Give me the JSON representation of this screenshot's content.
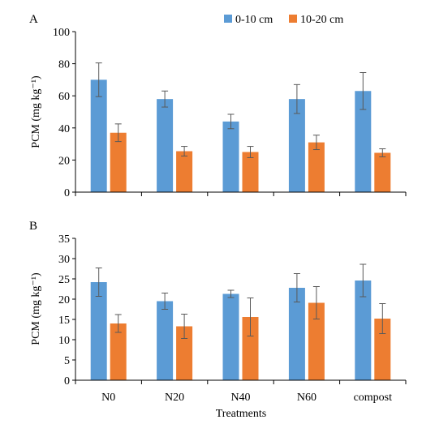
{
  "colors": {
    "series_a": "#5B9BD5",
    "series_b": "#ED7D31",
    "axis": "#000000",
    "error_bar": "#595959"
  },
  "legend": {
    "items": [
      "0-10 cm",
      "10-20 cm"
    ]
  },
  "xlabel": "Treatments",
  "chart_data": [
    {
      "type": "bar",
      "panel_label": "A",
      "categories": [
        "N0",
        "N20",
        "N40",
        "N60",
        "compost"
      ],
      "ylabel": "PCM (mg kg⁻¹)",
      "ylim": [
        0,
        100
      ],
      "yticks": [
        0,
        20,
        40,
        60,
        80,
        100
      ],
      "grid": false,
      "show_category_labels": false,
      "series": [
        {
          "name": "0-10 cm",
          "values": [
            70,
            58,
            44,
            58,
            63
          ],
          "error": [
            10.5,
            5,
            4.5,
            9,
            11.5
          ]
        },
        {
          "name": "10-20 cm",
          "values": [
            37,
            25.5,
            25,
            31,
            24.5
          ],
          "error": [
            5.5,
            3,
            3.5,
            4.5,
            2.5
          ]
        }
      ]
    },
    {
      "type": "bar",
      "panel_label": "B",
      "categories": [
        "N0",
        "N20",
        "N40",
        "N60",
        "compost"
      ],
      "ylabel": "PCM (mg kg⁻¹)",
      "ylim": [
        0,
        35
      ],
      "yticks": [
        0,
        5,
        10,
        15,
        20,
        25,
        30,
        35
      ],
      "grid": false,
      "show_category_labels": true,
      "series": [
        {
          "name": "0-10 cm",
          "values": [
            24.2,
            19.5,
            21.3,
            22.8,
            24.6
          ],
          "error": [
            3.5,
            2,
            0.9,
            3.5,
            4
          ]
        },
        {
          "name": "10-20 cm",
          "values": [
            14,
            13.3,
            15.6,
            19.1,
            15.2
          ],
          "error": [
            2.2,
            3,
            4.7,
            4,
            3.7
          ]
        }
      ]
    }
  ]
}
